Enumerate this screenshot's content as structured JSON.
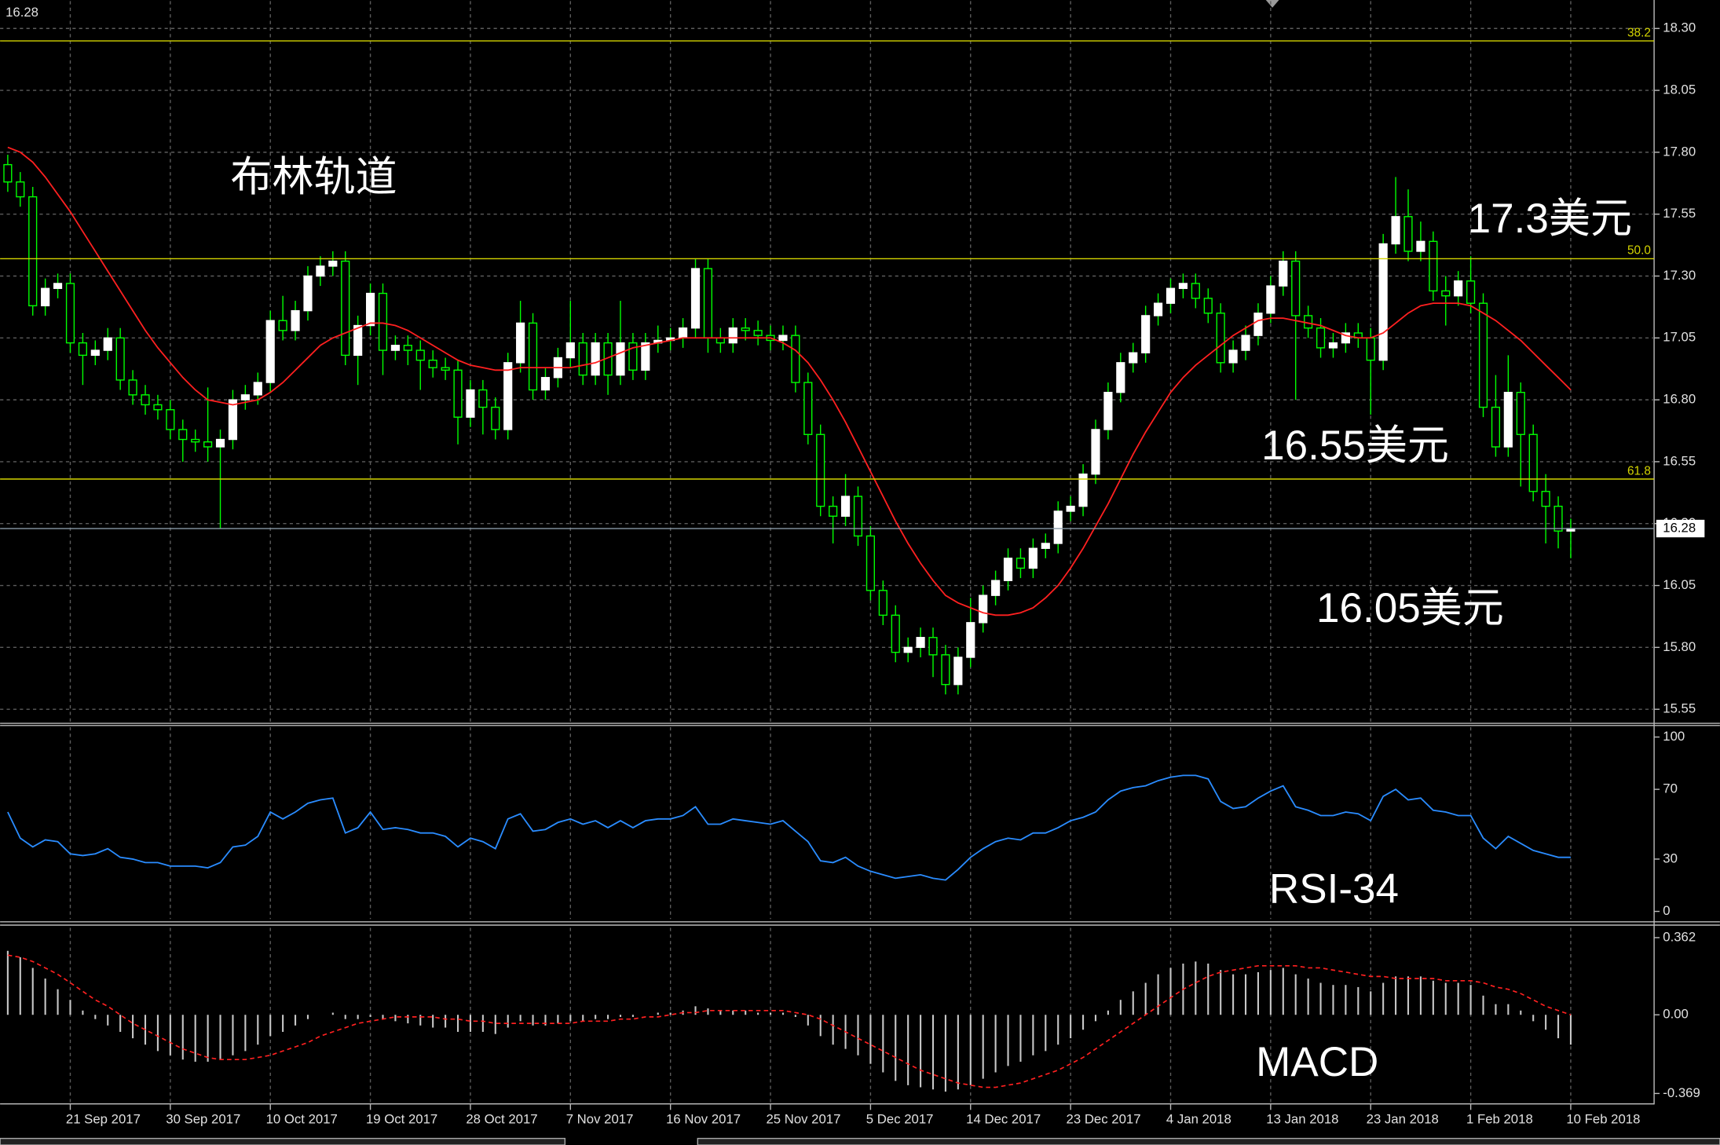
{
  "chart_data": [
    {
      "type": "candlestick",
      "price_label": 16.28,
      "annotations": [
        "布林轨道",
        "17.3美元",
        "16.55美元",
        "16.05美元"
      ],
      "categories": [
        null,
        null,
        null,
        null,
        null,
        "21 Sep 2017",
        null,
        null,
        null,
        null,
        null,
        null,
        null,
        "30 Sep 2017",
        null,
        null,
        null,
        null,
        null,
        null,
        null,
        "10 Oct 2017",
        null,
        null,
        null,
        null,
        null,
        null,
        null,
        "19 Oct 2017",
        null,
        null,
        null,
        null,
        null,
        null,
        null,
        "28 Oct 2017",
        null,
        null,
        null,
        null,
        null,
        null,
        null,
        "7 Nov 2017",
        null,
        null,
        null,
        null,
        null,
        null,
        null,
        "16 Nov 2017",
        null,
        null,
        null,
        null,
        null,
        null,
        null,
        "25 Nov 2017",
        null,
        null,
        null,
        null,
        null,
        null,
        null,
        "5 Dec 2017",
        null,
        null,
        null,
        null,
        null,
        null,
        null,
        "14 Dec 2017",
        null,
        null,
        null,
        null,
        null,
        null,
        null,
        "23 Dec 2017",
        null,
        null,
        null,
        null,
        null,
        null,
        null,
        "4 Jan 2018",
        null,
        null,
        null,
        null,
        null,
        null,
        null,
        "13 Jan 2018",
        null,
        null,
        null,
        null,
        null,
        null,
        null,
        "23 Jan 2018",
        null,
        null,
        null,
        null,
        null,
        null,
        null,
        "1 Feb 2018",
        null,
        null,
        null,
        null,
        null,
        null,
        null,
        "10 Feb 2018"
      ],
      "open": [
        17.75,
        17.68,
        17.62,
        17.18,
        17.25,
        17.27,
        17.03,
        16.98,
        17.0,
        17.05,
        16.88,
        16.82,
        16.78,
        16.76,
        16.68,
        16.64,
        16.63,
        16.61,
        16.64,
        16.8,
        16.82,
        16.87,
        17.12,
        17.08,
        17.16,
        17.3,
        17.34,
        17.36,
        16.98,
        17.1,
        17.23,
        17.0,
        17.02,
        17.0,
        16.96,
        16.93,
        16.92,
        16.73,
        16.84,
        16.77,
        16.68,
        16.95,
        17.11,
        16.84,
        16.89,
        16.97,
        17.03,
        16.9,
        17.03,
        16.9,
        17.03,
        16.92,
        17.03,
        17.04,
        17.05,
        17.09,
        17.33,
        17.05,
        17.03,
        17.09,
        17.08,
        17.06,
        17.04,
        17.06,
        16.87,
        16.66,
        16.37,
        16.33,
        16.41,
        16.25,
        16.03,
        15.93,
        15.78,
        15.8,
        15.84,
        15.77,
        15.65,
        15.76,
        15.9,
        16.01,
        16.07,
        16.16,
        16.12,
        16.2,
        16.22,
        16.35,
        16.37,
        16.5,
        16.68,
        16.83,
        16.95,
        16.99,
        17.14,
        17.19,
        17.25,
        17.27,
        17.21,
        17.15,
        16.95,
        17.0,
        17.06,
        17.15,
        17.26,
        17.36,
        17.14,
        17.09,
        17.01,
        17.03,
        17.07,
        17.05,
        16.96,
        17.43,
        17.54,
        17.4,
        17.44,
        17.24,
        17.22,
        17.28,
        17.19,
        16.77,
        16.61,
        16.83,
        16.66,
        16.43,
        16.37,
        16.27
      ],
      "high": [
        17.79,
        17.72,
        17.66,
        17.29,
        17.31,
        17.31,
        17.07,
        17.04,
        17.09,
        17.09,
        16.92,
        16.86,
        16.82,
        16.8,
        16.72,
        16.68,
        16.85,
        16.68,
        16.84,
        16.86,
        16.91,
        17.16,
        17.22,
        17.2,
        17.34,
        17.38,
        17.4,
        17.4,
        17.14,
        17.27,
        17.27,
        17.06,
        17.06,
        17.04,
        17.0,
        16.97,
        16.96,
        16.88,
        16.88,
        16.81,
        16.99,
        17.2,
        17.15,
        16.93,
        17.01,
        17.2,
        17.07,
        17.07,
        17.07,
        17.2,
        17.07,
        17.07,
        17.1,
        17.09,
        17.13,
        17.37,
        17.37,
        17.09,
        17.13,
        17.13,
        17.12,
        17.1,
        17.1,
        17.1,
        16.91,
        16.7,
        16.41,
        16.5,
        16.45,
        16.29,
        16.07,
        15.97,
        15.84,
        15.88,
        15.88,
        15.81,
        15.8,
        16.0,
        16.05,
        16.11,
        16.2,
        16.2,
        16.24,
        16.26,
        16.39,
        16.41,
        16.54,
        16.72,
        16.87,
        16.99,
        17.03,
        17.18,
        17.23,
        17.29,
        17.31,
        17.31,
        17.25,
        17.19,
        17.04,
        17.1,
        17.19,
        17.3,
        17.4,
        17.4,
        17.18,
        17.13,
        17.07,
        17.11,
        17.11,
        17.09,
        17.47,
        17.7,
        17.65,
        17.52,
        17.48,
        17.3,
        17.32,
        17.38,
        17.23,
        16.9,
        16.98,
        16.87,
        16.7,
        16.5,
        16.41,
        16.32
      ],
      "low": [
        17.64,
        17.58,
        17.14,
        17.14,
        17.21,
        16.99,
        16.86,
        16.94,
        16.96,
        16.84,
        16.78,
        16.74,
        16.72,
        16.64,
        16.55,
        16.59,
        16.55,
        16.28,
        16.6,
        16.76,
        16.78,
        16.83,
        17.04,
        17.04,
        17.12,
        17.26,
        17.3,
        16.94,
        16.86,
        17.06,
        16.9,
        16.96,
        16.94,
        16.84,
        16.89,
        16.88,
        16.62,
        16.69,
        16.66,
        16.64,
        16.64,
        16.91,
        16.8,
        16.8,
        16.85,
        16.93,
        16.86,
        16.86,
        16.82,
        16.86,
        16.88,
        16.88,
        16.99,
        17.0,
        17.01,
        17.05,
        16.99,
        16.99,
        16.99,
        17.04,
        17.02,
        17.0,
        17.0,
        16.83,
        16.62,
        16.33,
        16.22,
        16.29,
        16.21,
        15.99,
        15.89,
        15.74,
        15.74,
        15.76,
        15.68,
        15.61,
        15.61,
        15.72,
        15.86,
        15.97,
        16.03,
        16.08,
        16.08,
        16.16,
        16.18,
        16.31,
        16.33,
        16.46,
        16.64,
        16.79,
        16.91,
        16.95,
        17.1,
        17.15,
        17.21,
        17.17,
        17.11,
        16.91,
        16.91,
        16.96,
        17.02,
        17.11,
        17.22,
        16.8,
        17.05,
        16.97,
        16.97,
        16.99,
        17.01,
        16.74,
        16.92,
        17.39,
        17.36,
        17.36,
        17.2,
        17.1,
        17.18,
        17.15,
        16.73,
        16.57,
        16.57,
        16.45,
        16.39,
        16.22,
        16.2,
        16.16
      ],
      "close": [
        17.68,
        17.62,
        17.18,
        17.25,
        17.27,
        17.03,
        16.98,
        17.0,
        17.05,
        16.88,
        16.82,
        16.78,
        16.76,
        16.68,
        16.64,
        16.63,
        16.61,
        16.64,
        16.8,
        16.82,
        16.87,
        17.12,
        17.08,
        17.16,
        17.3,
        17.34,
        17.36,
        16.98,
        17.1,
        17.23,
        17.0,
        17.02,
        17.0,
        16.96,
        16.93,
        16.92,
        16.73,
        16.84,
        16.77,
        16.68,
        16.95,
        17.11,
        16.84,
        16.89,
        16.97,
        17.03,
        16.9,
        17.03,
        16.9,
        17.03,
        16.92,
        17.03,
        17.04,
        17.05,
        17.09,
        17.33,
        17.05,
        17.03,
        17.09,
        17.08,
        17.06,
        17.04,
        17.06,
        16.87,
        16.66,
        16.37,
        16.33,
        16.41,
        16.25,
        16.03,
        15.93,
        15.78,
        15.8,
        15.84,
        15.77,
        15.65,
        15.76,
        15.9,
        16.01,
        16.07,
        16.16,
        16.12,
        16.2,
        16.22,
        16.35,
        16.37,
        16.5,
        16.68,
        16.83,
        16.95,
        16.99,
        17.14,
        17.19,
        17.25,
        17.27,
        17.21,
        17.15,
        16.95,
        17.0,
        17.06,
        17.15,
        17.26,
        17.36,
        17.14,
        17.09,
        17.01,
        17.03,
        17.07,
        17.05,
        16.96,
        17.43,
        17.54,
        17.4,
        17.44,
        17.24,
        17.22,
        17.28,
        17.19,
        16.77,
        16.61,
        16.83,
        16.66,
        16.43,
        16.37,
        16.27,
        16.28
      ],
      "ma": {
        "color": "#ff2020",
        "values": [
          17.82,
          17.8,
          17.76,
          17.7,
          17.63,
          17.56,
          17.48,
          17.4,
          17.32,
          17.24,
          17.16,
          17.08,
          17.01,
          16.95,
          16.89,
          16.84,
          16.8,
          16.79,
          16.78,
          16.79,
          16.8,
          16.83,
          16.87,
          16.92,
          16.97,
          17.02,
          17.05,
          17.07,
          17.09,
          17.11,
          17.11,
          17.1,
          17.08,
          17.05,
          17.02,
          16.99,
          16.96,
          16.94,
          16.93,
          16.92,
          16.92,
          16.93,
          16.93,
          16.93,
          16.93,
          16.93,
          16.94,
          16.95,
          16.97,
          16.99,
          17.01,
          17.02,
          17.03,
          17.04,
          17.05,
          17.05,
          17.05,
          17.05,
          17.05,
          17.05,
          17.05,
          17.05,
          17.03,
          17.0,
          16.95,
          16.88,
          16.8,
          16.71,
          16.61,
          16.51,
          16.41,
          16.31,
          16.22,
          16.14,
          16.07,
          16.01,
          15.98,
          15.96,
          15.94,
          15.93,
          15.93,
          15.94,
          15.96,
          16.0,
          16.05,
          16.12,
          16.2,
          16.29,
          16.38,
          16.48,
          16.58,
          16.67,
          16.75,
          16.83,
          16.89,
          16.94,
          16.98,
          17.02,
          17.06,
          17.09,
          17.12,
          17.13,
          17.13,
          17.12,
          17.11,
          17.1,
          17.08,
          17.06,
          17.05,
          17.05,
          17.07,
          17.11,
          17.15,
          17.18,
          17.19,
          17.19,
          17.19,
          17.18,
          17.15,
          17.12,
          17.08,
          17.04,
          16.99,
          16.94,
          16.89,
          16.84
        ]
      },
      "bull_color": "#ffffff",
      "bear_color": "#000000",
      "wick_color": "#00ff00",
      "fib_color": "#d4d400",
      "fib_levels": [
        {
          "label": "38.2",
          "value": 18.25
        },
        {
          "label": "50.0",
          "value": 17.37
        },
        {
          "label": "61.8",
          "value": 16.48
        }
      ],
      "ylim": [
        15.5,
        18.415
      ],
      "yticks": [
        {
          "value": 18.3,
          "label": "18.30"
        },
        18.05,
        {
          "value": 17.8,
          "label": "17.80"
        },
        17.55,
        {
          "value": 17.3,
          "label": "17.30"
        },
        17.05,
        {
          "value": 16.8,
          "label": "16.80"
        },
        16.55,
        {
          "value": 16.3,
          "label": "16.30"
        },
        16.05,
        {
          "value": 15.8,
          "label": "15.80"
        },
        15.55
      ],
      "grid": true
    },
    {
      "type": "line",
      "label": "RSI-34",
      "color": "#2a8cff",
      "values": [
        57,
        42,
        37,
        41,
        40,
        33,
        32,
        33,
        36,
        31,
        30,
        28,
        28,
        26,
        26,
        26,
        25,
        28,
        37,
        38,
        43,
        57,
        53,
        57,
        62,
        64,
        65,
        45,
        48,
        57,
        47,
        48,
        47,
        45,
        45,
        43,
        37,
        42,
        40,
        36,
        53,
        56,
        46,
        47,
        51,
        53,
        50,
        52,
        48,
        52,
        48,
        52,
        53,
        53,
        55,
        60,
        50,
        50,
        53,
        52,
        51,
        50,
        52,
        46,
        40,
        29,
        28,
        31,
        26,
        23,
        21,
        19,
        20,
        21,
        19,
        18,
        24,
        31,
        36,
        40,
        42,
        41,
        45,
        45,
        48,
        52,
        54,
        57,
        64,
        69,
        71,
        72,
        75,
        77,
        78,
        78,
        76,
        63,
        59,
        60,
        65,
        69,
        72,
        60,
        58,
        55,
        55,
        57,
        56,
        52,
        66,
        70,
        64,
        65,
        58,
        57,
        55,
        55,
        42,
        36,
        43,
        39,
        35,
        33,
        31,
        31
      ],
      "ylim": [
        -4.4,
        106.3
      ],
      "yticks": [
        100,
        70,
        30,
        0
      ]
    },
    {
      "type": "macd",
      "label": "MACD",
      "histogram": {
        "color": "#c8c8c8",
        "values": [
          0.3,
          0.27,
          0.22,
          0.17,
          0.12,
          0.07,
          0.02,
          -0.02,
          -0.05,
          -0.08,
          -0.11,
          -0.14,
          -0.17,
          -0.19,
          -0.21,
          -0.22,
          -0.22,
          -0.21,
          -0.19,
          -0.17,
          -0.14,
          -0.1,
          -0.08,
          -0.05,
          -0.02,
          0.0,
          0.01,
          -0.02,
          -0.02,
          -0.01,
          -0.02,
          -0.03,
          -0.04,
          -0.05,
          -0.06,
          -0.06,
          -0.08,
          -0.08,
          -0.08,
          -0.09,
          -0.06,
          -0.03,
          -0.05,
          -0.05,
          -0.04,
          -0.03,
          -0.03,
          -0.02,
          -0.02,
          -0.01,
          -0.01,
          0.0,
          0.01,
          0.01,
          0.02,
          0.04,
          0.03,
          0.02,
          0.02,
          0.02,
          0.01,
          0.01,
          0.01,
          -0.01,
          -0.05,
          -0.1,
          -0.14,
          -0.16,
          -0.19,
          -0.23,
          -0.27,
          -0.31,
          -0.33,
          -0.34,
          -0.35,
          -0.36,
          -0.35,
          -0.33,
          -0.3,
          -0.27,
          -0.24,
          -0.22,
          -0.19,
          -0.17,
          -0.14,
          -0.11,
          -0.07,
          -0.03,
          0.02,
          0.07,
          0.11,
          0.15,
          0.19,
          0.22,
          0.24,
          0.25,
          0.24,
          0.21,
          0.19,
          0.19,
          0.2,
          0.21,
          0.22,
          0.19,
          0.17,
          0.15,
          0.14,
          0.14,
          0.13,
          0.11,
          0.15,
          0.18,
          0.18,
          0.18,
          0.16,
          0.15,
          0.15,
          0.14,
          0.09,
          0.05,
          0.05,
          0.02,
          -0.03,
          -0.07,
          -0.11,
          -0.14
        ]
      },
      "signal": {
        "color": "#ff2020",
        "values": [
          0.28,
          0.27,
          0.25,
          0.22,
          0.19,
          0.15,
          0.11,
          0.07,
          0.04,
          0.0,
          -0.04,
          -0.07,
          -0.1,
          -0.13,
          -0.16,
          -0.18,
          -0.2,
          -0.21,
          -0.21,
          -0.21,
          -0.2,
          -0.19,
          -0.17,
          -0.15,
          -0.13,
          -0.1,
          -0.08,
          -0.06,
          -0.04,
          -0.03,
          -0.02,
          -0.01,
          -0.01,
          -0.01,
          -0.01,
          -0.02,
          -0.02,
          -0.03,
          -0.03,
          -0.04,
          -0.04,
          -0.04,
          -0.04,
          -0.04,
          -0.04,
          -0.04,
          -0.03,
          -0.03,
          -0.03,
          -0.02,
          -0.02,
          -0.01,
          -0.01,
          0.0,
          0.01,
          0.01,
          0.02,
          0.02,
          0.02,
          0.02,
          0.02,
          0.02,
          0.02,
          0.01,
          0.0,
          -0.02,
          -0.05,
          -0.08,
          -0.11,
          -0.14,
          -0.17,
          -0.2,
          -0.23,
          -0.26,
          -0.28,
          -0.3,
          -0.32,
          -0.33,
          -0.34,
          -0.34,
          -0.33,
          -0.32,
          -0.3,
          -0.28,
          -0.26,
          -0.23,
          -0.2,
          -0.16,
          -0.12,
          -0.08,
          -0.04,
          0.0,
          0.04,
          0.08,
          0.12,
          0.15,
          0.18,
          0.2,
          0.21,
          0.22,
          0.23,
          0.23,
          0.23,
          0.23,
          0.22,
          0.22,
          0.21,
          0.2,
          0.19,
          0.18,
          0.18,
          0.17,
          0.17,
          0.17,
          0.17,
          0.16,
          0.16,
          0.16,
          0.15,
          0.13,
          0.12,
          0.1,
          0.07,
          0.04,
          0.02,
          0.0
        ]
      },
      "ylim": [
        -0.41,
        0.413
      ],
      "yticks": [
        0.362,
        {
          "value": 0,
          "label": "0.00"
        },
        -0.369
      ]
    }
  ]
}
